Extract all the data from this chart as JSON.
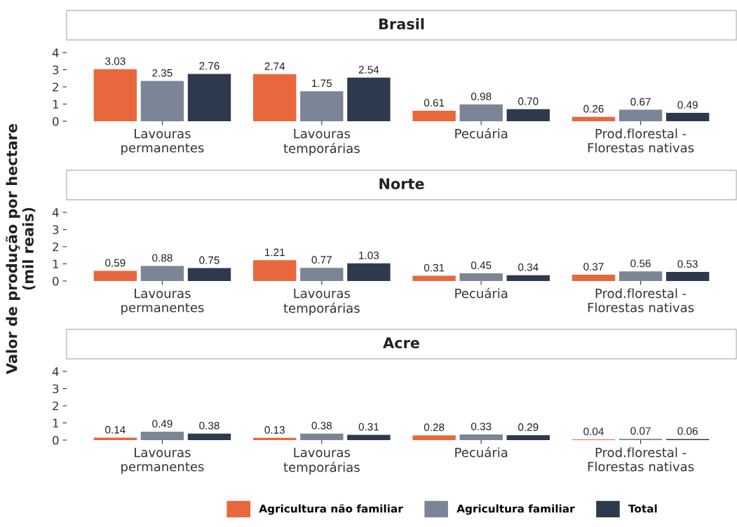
{
  "chart_data": [
    {
      "type": "bar",
      "title": "Brasil",
      "categories": [
        "Lavouras\npermanentes",
        "Lavouras\ntemporárias",
        "Pecuária",
        "Prod.florestal -\nFlorestas nativas"
      ],
      "ylim": [
        0,
        4
      ],
      "yticks": [
        0,
        1,
        2,
        3,
        4
      ],
      "grid": false,
      "series": [
        {
          "color": "#e8673c",
          "values": [
            3.03,
            2.74,
            0.61,
            0.26
          ],
          "value_labels": [
            "3.03",
            "2.74",
            "0.61",
            "0.26"
          ]
        },
        {
          "color": "#7b8595",
          "values": [
            2.35,
            1.75,
            0.98,
            0.67
          ],
          "value_labels": [
            "2.35",
            "1.75",
            "0.98",
            "0.67"
          ]
        },
        {
          "color": "#2d3a4e",
          "values": [
            2.76,
            2.54,
            0.7,
            0.49
          ],
          "value_labels": [
            "2.76",
            "2.54",
            "0.70",
            "0.49"
          ]
        }
      ]
    },
    {
      "type": "bar",
      "title": "Norte",
      "ylabel": "Valor de produção por hectare\n(mil reais)",
      "categories": [
        "Lavouras\npermanentes",
        "Lavouras\ntemporárias",
        "Pecuária",
        "Prod.florestal -\nFlorestas nativas"
      ],
      "ylim": [
        0,
        4
      ],
      "yticks": [
        0,
        1,
        2,
        3,
        4
      ],
      "grid": false,
      "series": [
        {
          "color": "#e8673c",
          "values": [
            0.59,
            1.21,
            0.31,
            0.37
          ],
          "value_labels": [
            "0.59",
            "1.21",
            "0.31",
            "0.37"
          ]
        },
        {
          "color": "#7b8595",
          "values": [
            0.88,
            0.77,
            0.45,
            0.56
          ],
          "value_labels": [
            "0.88",
            "0.77",
            "0.45",
            "0.56"
          ]
        },
        {
          "color": "#2d3a4e",
          "values": [
            0.75,
            1.03,
            0.34,
            0.53
          ],
          "value_labels": [
            "0.75",
            "1.03",
            "0.34",
            "0.53"
          ]
        }
      ]
    },
    {
      "type": "bar",
      "title": "Acre",
      "categories": [
        "Lavouras\npermanentes",
        "Lavouras\ntemporárias",
        "Pecuária",
        "Prod.florestal -\nFlorestas nativas"
      ],
      "ylim": [
        0,
        4
      ],
      "yticks": [
        0,
        1,
        2,
        3,
        4
      ],
      "grid": false,
      "legend": "bottom",
      "series": [
        {
          "name": "Agricultura não familiar",
          "color": "#e8673c",
          "values": [
            0.14,
            0.13,
            0.28,
            0.04
          ],
          "value_labels": [
            "0.14",
            "0.13",
            "0.28",
            "0.04"
          ]
        },
        {
          "name": "Agricultura familiar",
          "color": "#7b8595",
          "values": [
            0.49,
            0.38,
            0.33,
            0.07
          ],
          "value_labels": [
            "0.49",
            "0.38",
            "0.33",
            "0.07"
          ]
        },
        {
          "name": "Total",
          "color": "#2d3a4e",
          "values": [
            0.38,
            0.31,
            0.29,
            0.06
          ],
          "value_labels": [
            "0.38",
            "0.31",
            "0.29",
            "0.06"
          ]
        }
      ]
    }
  ]
}
